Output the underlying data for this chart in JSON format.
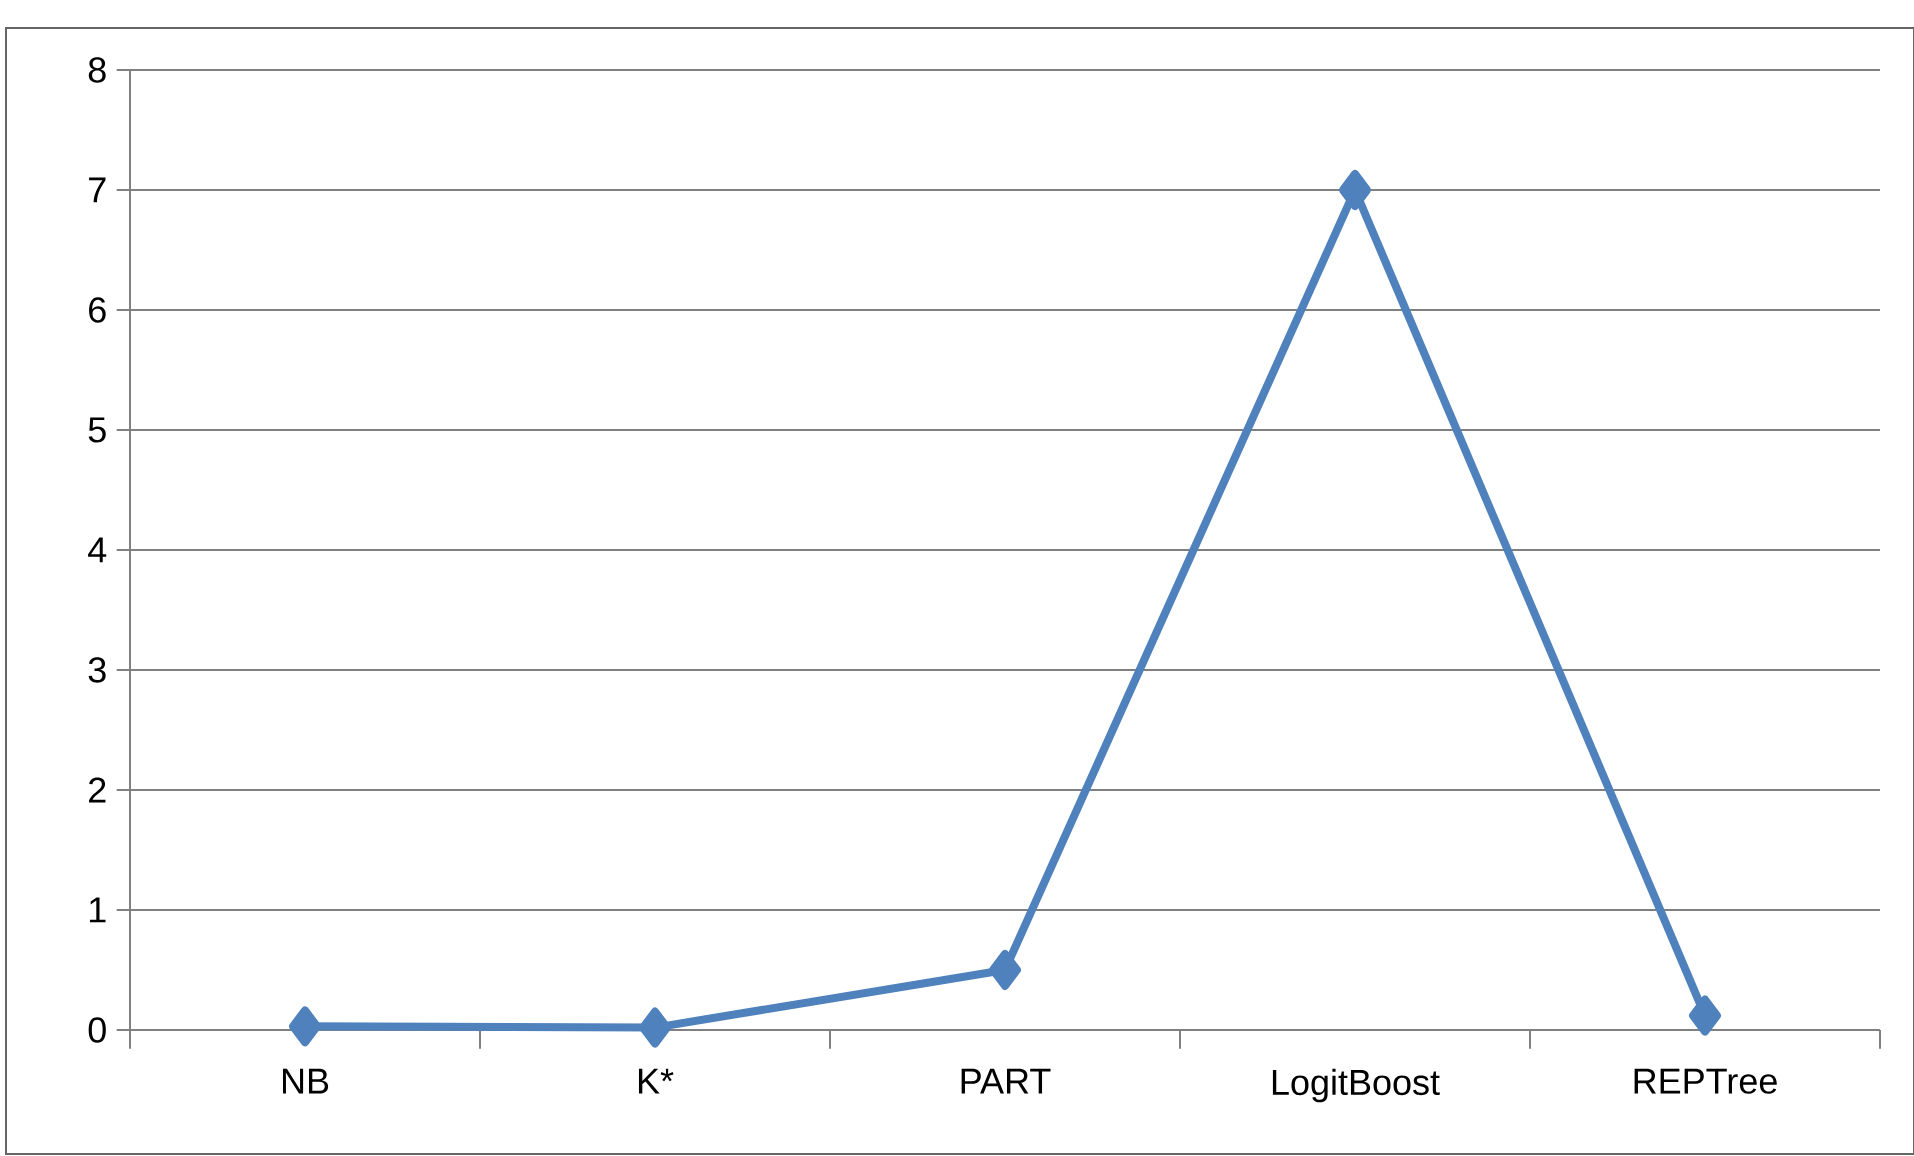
{
  "chart_data": {
    "type": "line",
    "categories": [
      "NB",
      "K*",
      "PART",
      "LogitBoost",
      "REPTree"
    ],
    "series": [
      {
        "color": "#4f81bd",
        "values": [
          0.03,
          0.02,
          0.5,
          7,
          0.12
        ]
      }
    ],
    "ylim": [
      0,
      8
    ],
    "yticks": [
      0,
      1,
      2,
      3,
      4,
      5,
      6,
      7,
      8
    ],
    "grid": "y",
    "marker": "diamond",
    "line_style": "solid"
  }
}
